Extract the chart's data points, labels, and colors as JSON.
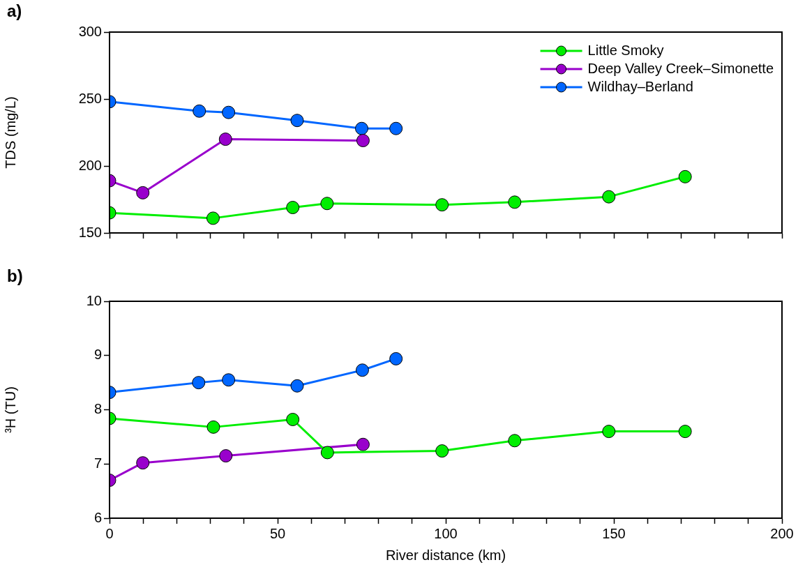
{
  "chart_data": [
    {
      "type": "line",
      "title": "a)",
      "ylabel": "TDS (mg/L)",
      "xlim": [
        0,
        200
      ],
      "xticks": [
        0,
        {
          "value": 10,
          "label": null
        },
        {
          "value": 20,
          "label": null
        },
        {
          "value": 30,
          "label": null
        },
        {
          "value": 40,
          "label": null
        },
        50,
        {
          "value": 60,
          "label": null
        },
        {
          "value": 70,
          "label": null
        },
        {
          "value": 80,
          "label": null
        },
        {
          "value": 90,
          "label": null
        },
        100,
        {
          "value": 110,
          "label": null
        },
        {
          "value": 120,
          "label": null
        },
        {
          "value": 130,
          "label": null
        },
        {
          "value": 140,
          "label": null
        },
        150,
        {
          "value": 160,
          "label": null
        },
        {
          "value": 170,
          "label": null
        },
        {
          "value": 180,
          "label": null
        },
        {
          "value": 190,
          "label": null
        },
        200
      ],
      "ylim": [
        150,
        300
      ],
      "yticks": [
        150,
        200,
        250,
        300
      ],
      "tick_labels": "y",
      "marker": "circle",
      "line_style": "solid",
      "legend": "top right",
      "series": [
        {
          "name": "Little Smoky",
          "color": "#00ee00",
          "x": [
            0,
            30.8,
            54.5,
            64.7,
            98.9,
            120.5,
            148.5,
            171.2
          ],
          "values": [
            165,
            161,
            169,
            172,
            171,
            173,
            177,
            192
          ]
        },
        {
          "name": "Deep Valley Creek–Simonette",
          "color": "#9900cc",
          "x": [
            0,
            9.9,
            34.5,
            75.4
          ],
          "values": [
            189,
            180,
            220,
            219
          ]
        },
        {
          "name": "Wildhay–Berland",
          "color": "#0066ff",
          "x": [
            0,
            26.7,
            35.4,
            55.8,
            75,
            85.2
          ],
          "values": [
            248,
            241,
            240,
            234,
            228,
            228
          ]
        }
      ]
    },
    {
      "type": "line",
      "title": "b)",
      "xlabel": "River distance (km)",
      "ylabel": "³H (TU)",
      "xlim": [
        0,
        200
      ],
      "xticks": [
        0,
        {
          "value": 10,
          "label": null
        },
        {
          "value": 20,
          "label": null
        },
        {
          "value": 30,
          "label": null
        },
        {
          "value": 40,
          "label": null
        },
        50,
        {
          "value": 60,
          "label": null
        },
        {
          "value": 70,
          "label": null
        },
        {
          "value": 80,
          "label": null
        },
        {
          "value": 90,
          "label": null
        },
        100,
        {
          "value": 110,
          "label": null
        },
        {
          "value": 120,
          "label": null
        },
        {
          "value": 130,
          "label": null
        },
        {
          "value": 140,
          "label": null
        },
        150,
        {
          "value": 160,
          "label": null
        },
        {
          "value": 170,
          "label": null
        },
        {
          "value": 180,
          "label": null
        },
        {
          "value": 190,
          "label": null
        },
        200
      ],
      "ylim": [
        6,
        10
      ],
      "yticks": [
        6,
        7,
        8,
        9,
        10
      ],
      "marker": "circle",
      "line_style": "solid",
      "series": [
        {
          "color": "#00ee00",
          "x": [
            0,
            30.9,
            54.5,
            64.8,
            98.9,
            120.5,
            148.5,
            171.2
          ],
          "values": [
            7.84,
            7.68,
            7.82,
            7.21,
            7.24,
            7.43,
            7.6,
            7.6
          ]
        },
        {
          "color": "#9900cc",
          "x": [
            0,
            9.9,
            34.6,
            75.4
          ],
          "values": [
            6.7,
            7.02,
            7.15,
            7.36
          ]
        },
        {
          "color": "#0066ff",
          "x": [
            0,
            26.5,
            35.4,
            55.8,
            75.2,
            85.2
          ],
          "values": [
            8.32,
            8.5,
            8.55,
            8.44,
            8.73,
            8.94
          ]
        }
      ]
    }
  ]
}
